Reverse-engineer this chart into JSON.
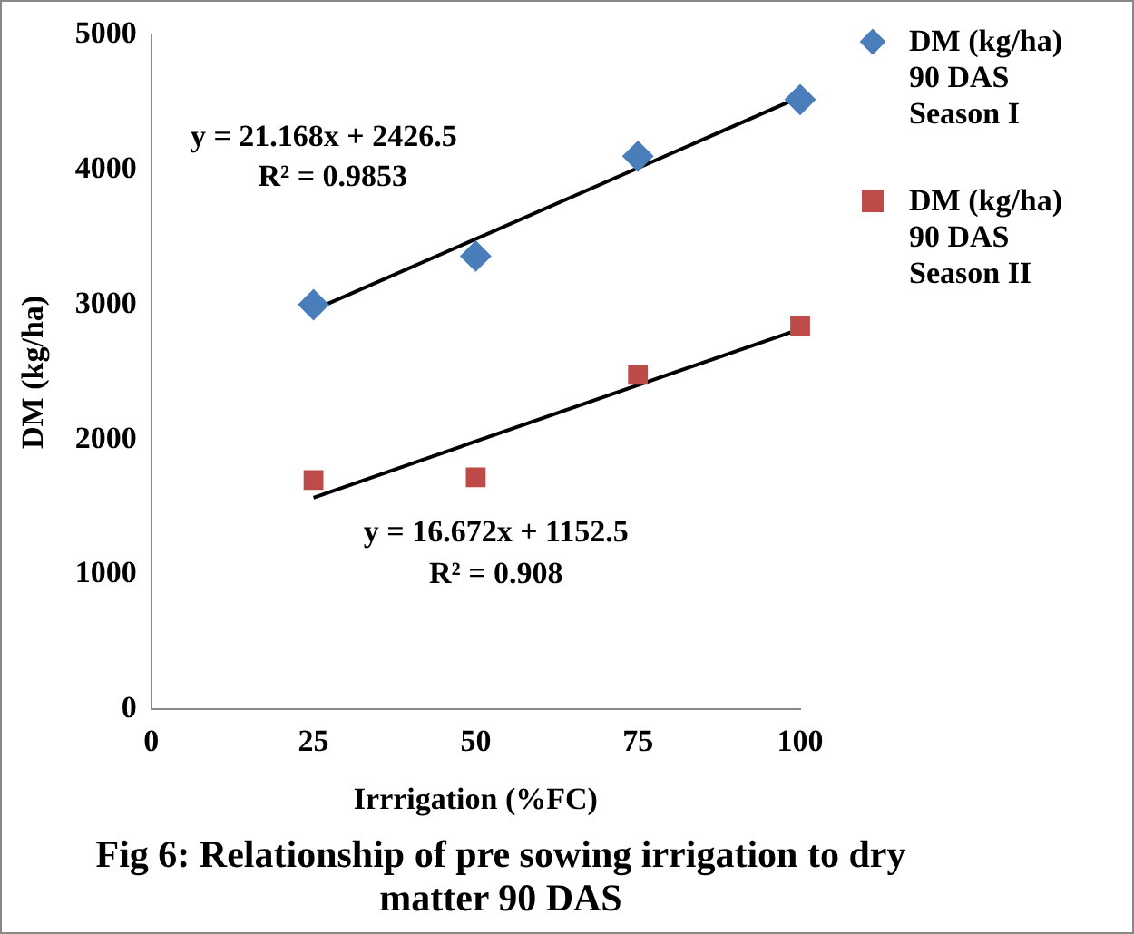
{
  "chart_data": {
    "type": "scatter",
    "title": "Fig 6: Relationship of pre sowing irrigation to dry matter 90 DAS",
    "xlabel": "Irrrigation (%FC)",
    "ylabel": "DM (kg/ha)",
    "series": [
      {
        "name": "DM (kg/ha) 90 DAS Season I",
        "color": "#4a7ebb",
        "marker": "diamond",
        "x": [
          25,
          50,
          75,
          100
        ],
        "values": [
          3000,
          3360,
          4100,
          4520
        ]
      },
      {
        "name": "DM (kg/ha) 90 DAS Season II",
        "color": "#be4b48",
        "marker": "square",
        "x": [
          25,
          50,
          75,
          100
        ],
        "values": [
          1700,
          1720,
          2480,
          2840
        ]
      },
      {
        "type": "line",
        "color": "#000000",
        "marker": "none",
        "x": [
          25,
          100
        ],
        "values": [
          2960,
          4540
        ]
      },
      {
        "type": "line",
        "color": "#000000",
        "marker": "none",
        "x": [
          25,
          100
        ],
        "values": [
          1570,
          2820
        ]
      }
    ],
    "xlim": [
      0,
      100
    ],
    "xticks": [
      0,
      25,
      50,
      75,
      100
    ],
    "ylim": [
      0,
      5000
    ],
    "yticks": [
      0,
      1000,
      2000,
      3000,
      4000,
      5000
    ],
    "grid": false,
    "legend": "right",
    "annotations": [
      "y = 21.168x + 2426.5",
      "R² = 0.9853",
      "y = 16.672x + 1152.5",
      "R² = 0.908"
    ]
  }
}
